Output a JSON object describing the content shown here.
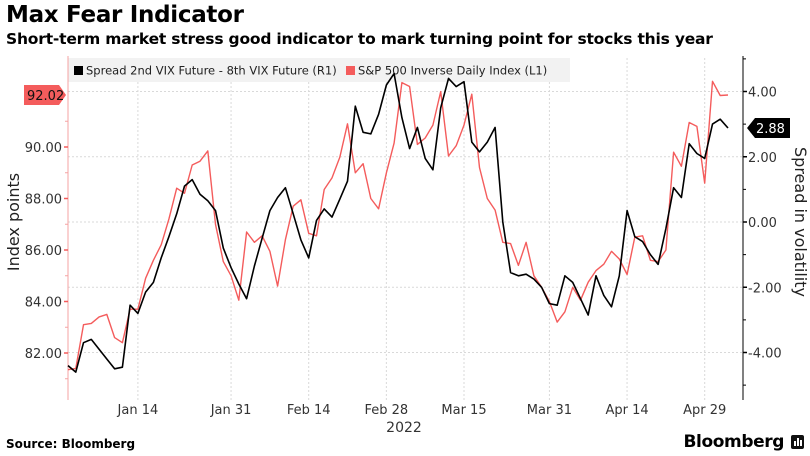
{
  "header": {
    "title": "Max Fear Indicator",
    "subtitle": "Short-term market stress good indicator to mark turning point for stocks this year"
  },
  "footer": {
    "source": "Source: Bloomberg",
    "brand": "Bloomberg",
    "brand_icon": "bloomberg-terminal-icon"
  },
  "chart_data": {
    "type": "line",
    "title": "Max Fear Indicator",
    "subtitle": "Short-term market stress good indicator to mark turning point for stocks this year",
    "xlabel": "2022",
    "x_tick_labels": [
      "Jan 14",
      "Jan 31",
      "Feb 14",
      "Feb 28",
      "Mar 15",
      "Mar 31",
      "Apr 14",
      "Apr 29"
    ],
    "x_tick_index": [
      9,
      21,
      31,
      41,
      51,
      62,
      72,
      82
    ],
    "ylabel_left": "Index points",
    "ylabel_right": "Spread in volatility",
    "ylim_left": [
      80.9,
      94.2
    ],
    "ylim_right": [
      -5.0,
      5.0
    ],
    "left_ticks": [
      "82.00",
      "84.00",
      "86.00",
      "88.00",
      "90.00"
    ],
    "left_tick_values": [
      82,
      84,
      86,
      88,
      90
    ],
    "right_ticks": [
      "-4.00",
      "-2.00",
      "0.00",
      "2.00",
      "4.00"
    ],
    "right_tick_values": [
      -4,
      -2,
      0,
      2,
      4
    ],
    "grid": true,
    "legend_position": "top",
    "series": [
      {
        "name": "Spread 2nd VIX Future - 8th VIX Future (R1)",
        "axis": "right",
        "color": "#000000",
        "last_value_label": "2.88",
        "values": [
          -4.4,
          -4.6,
          -3.7,
          -3.6,
          -3.9,
          -4.2,
          -4.5,
          -4.45,
          -2.55,
          -2.8,
          -2.15,
          -1.85,
          -1.1,
          -0.45,
          0.25,
          1.1,
          1.3,
          0.85,
          0.65,
          0.35,
          -0.8,
          -1.4,
          -1.9,
          -2.35,
          -1.35,
          -0.5,
          0.35,
          0.75,
          1.05,
          0.25,
          -0.55,
          -1.1,
          0.05,
          0.4,
          0.15,
          0.7,
          1.25,
          3.55,
          2.75,
          2.7,
          3.3,
          4.2,
          4.55,
          3.2,
          2.25,
          2.9,
          1.95,
          1.6,
          3.5,
          4.4,
          4.15,
          4.3,
          2.45,
          2.15,
          2.45,
          2.9,
          0.0,
          -1.55,
          -1.65,
          -1.6,
          -1.75,
          -2.0,
          -2.5,
          -2.55,
          -1.65,
          -1.85,
          -2.35,
          -2.85,
          -1.65,
          -2.25,
          -2.6,
          -1.65,
          0.35,
          -0.45,
          -0.6,
          -1.0,
          -1.3,
          -0.2,
          1.05,
          0.75,
          2.4,
          2.1,
          1.95,
          3.0,
          3.15,
          2.88
        ]
      },
      {
        "name": "S&P 500 Inverse Daily Index (L1)",
        "axis": "left",
        "color": "#f45c5c",
        "last_value_label": "92.02",
        "values": [
          81.35,
          81.4,
          83.1,
          83.15,
          83.4,
          83.5,
          82.6,
          82.4,
          83.7,
          83.7,
          84.9,
          85.6,
          86.2,
          87.2,
          88.4,
          88.2,
          89.3,
          89.45,
          89.85,
          87.0,
          85.55,
          85.0,
          84.05,
          86.7,
          86.3,
          86.55,
          85.95,
          84.6,
          86.4,
          87.7,
          87.95,
          86.65,
          86.55,
          88.35,
          88.8,
          89.6,
          90.9,
          89.0,
          89.35,
          88.0,
          87.6,
          89.0,
          90.15,
          92.5,
          92.35,
          90.1,
          90.35,
          90.85,
          92.15,
          89.65,
          90.05,
          90.85,
          92.05,
          89.2,
          88.0,
          87.55,
          86.3,
          86.25,
          85.4,
          86.3,
          85.0,
          84.55,
          84.0,
          83.2,
          83.6,
          84.55,
          84.05,
          84.75,
          85.2,
          85.45,
          85.95,
          85.65,
          85.05,
          86.5,
          86.55,
          85.6,
          85.55,
          86.0,
          89.8,
          89.25,
          90.95,
          90.8,
          88.6,
          92.55,
          92.0,
          92.02
        ]
      }
    ]
  }
}
